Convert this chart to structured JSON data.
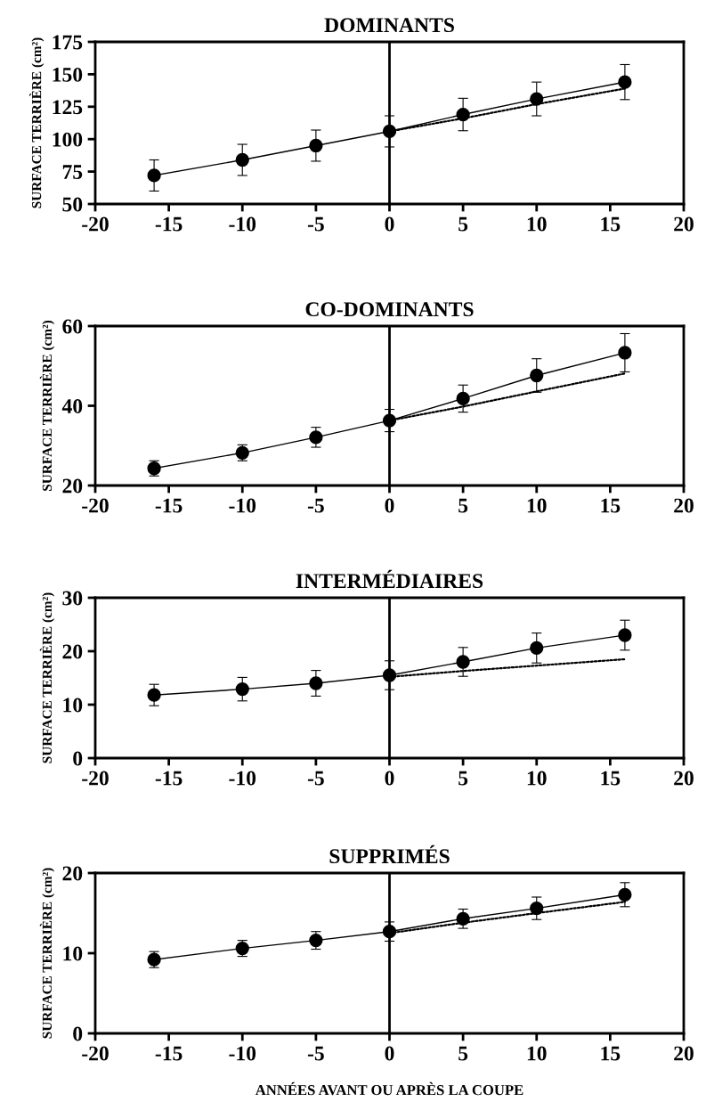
{
  "chart_data": [
    {
      "type": "line",
      "title": "DOMINANTS",
      "ylabel": "SURFACE TERRIÈRE (cm²)",
      "xlim": [
        -20,
        20
      ],
      "xticks": [
        -20,
        -15,
        -10,
        -5,
        0,
        5,
        10,
        15,
        20
      ],
      "ylim": [
        50,
        175
      ],
      "yticks": [
        50,
        75,
        100,
        125,
        150,
        175
      ],
      "grid": false,
      "ref_lines": [
        {
          "axis": "x",
          "value": 0,
          "color": "#000000"
        }
      ],
      "series": [
        {
          "color": "#000000",
          "marker": "circle",
          "line_style": "solid",
          "x": [
            -16,
            -10,
            -5,
            0,
            5,
            10,
            16
          ],
          "values": [
            72,
            84,
            95,
            106,
            119,
            131,
            144
          ],
          "errors": [
            12,
            12,
            12,
            12,
            12.5,
            13,
            13.5
          ]
        },
        {
          "color": "#000000",
          "marker": "none",
          "line_style": "dotted",
          "x": [
            0,
            5,
            10,
            16
          ],
          "values": [
            106,
            116,
            127,
            139
          ]
        }
      ]
    },
    {
      "type": "line",
      "title": "CO-DOMINANTS",
      "ylabel": "SURFACE TERRIÈRE (cm²)",
      "xlim": [
        -20,
        20
      ],
      "xticks": [
        -20,
        -15,
        -10,
        -5,
        0,
        5,
        10,
        15,
        20
      ],
      "ylim": [
        20,
        60
      ],
      "yticks": [
        20,
        40,
        60
      ],
      "grid": false,
      "ref_lines": [
        {
          "axis": "x",
          "value": 0,
          "color": "#000000"
        }
      ],
      "series": [
        {
          "color": "#000000",
          "marker": "circle",
          "line_style": "solid",
          "x": [
            -16,
            -10,
            -5,
            0,
            5,
            10,
            16
          ],
          "values": [
            24.3,
            28.2,
            32.1,
            36.3,
            41.8,
            47.6,
            53.3
          ],
          "errors": [
            1.9,
            2.0,
            2.5,
            2.8,
            3.4,
            4.2,
            4.8
          ]
        },
        {
          "color": "#000000",
          "marker": "none",
          "line_style": "dotted",
          "x": [
            0,
            5,
            10,
            16
          ],
          "values": [
            36.3,
            39.8,
            43.6,
            48.1
          ]
        }
      ]
    },
    {
      "type": "line",
      "title": "INTERMÉDIAIRES",
      "ylabel": "SURFACE TERRIÈRE (cm²)",
      "xlim": [
        -20,
        20
      ],
      "xticks": [
        -20,
        -15,
        -10,
        -5,
        0,
        5,
        10,
        15,
        20
      ],
      "ylim": [
        0,
        30
      ],
      "yticks": [
        0,
        10,
        20,
        30
      ],
      "grid": false,
      "ref_lines": [
        {
          "axis": "x",
          "value": 0,
          "color": "#000000"
        }
      ],
      "series": [
        {
          "color": "#000000",
          "marker": "circle",
          "line_style": "solid",
          "x": [
            -16,
            -10,
            -5,
            0,
            5,
            10,
            16
          ],
          "values": [
            11.8,
            12.9,
            14.0,
            15.5,
            18.0,
            20.6,
            23.0
          ],
          "errors": [
            2.0,
            2.2,
            2.4,
            2.7,
            2.7,
            2.8,
            2.8
          ]
        },
        {
          "color": "#000000",
          "marker": "none",
          "line_style": "dotted",
          "x": [
            0,
            5,
            10,
            16
          ],
          "values": [
            15.2,
            16.3,
            17.3,
            18.5
          ]
        }
      ]
    },
    {
      "type": "line",
      "title": "SUPPRIMÉS",
      "ylabel": "SURFACE TERRIÈRE (cm²)",
      "xlabel": "ANNÉES AVANT OU APRÈS LA COUPE",
      "xlim": [
        -20,
        20
      ],
      "xticks": [
        -20,
        -15,
        -10,
        -5,
        0,
        5,
        10,
        15,
        20
      ],
      "ylim": [
        0,
        20
      ],
      "yticks": [
        0,
        10,
        20
      ],
      "grid": false,
      "ref_lines": [
        {
          "axis": "x",
          "value": 0,
          "color": "#000000"
        }
      ],
      "series": [
        {
          "color": "#000000",
          "marker": "circle",
          "line_style": "solid",
          "x": [
            -16,
            -10,
            -5,
            0,
            5,
            10,
            16
          ],
          "values": [
            9.2,
            10.6,
            11.6,
            12.7,
            14.3,
            15.6,
            17.3
          ],
          "errors": [
            1.0,
            1.0,
            1.1,
            1.2,
            1.2,
            1.4,
            1.5
          ]
        },
        {
          "color": "#000000",
          "marker": "none",
          "line_style": "dotted",
          "x": [
            0,
            5,
            10,
            16
          ],
          "values": [
            12.5,
            13.8,
            15.0,
            16.4
          ]
        }
      ]
    }
  ]
}
